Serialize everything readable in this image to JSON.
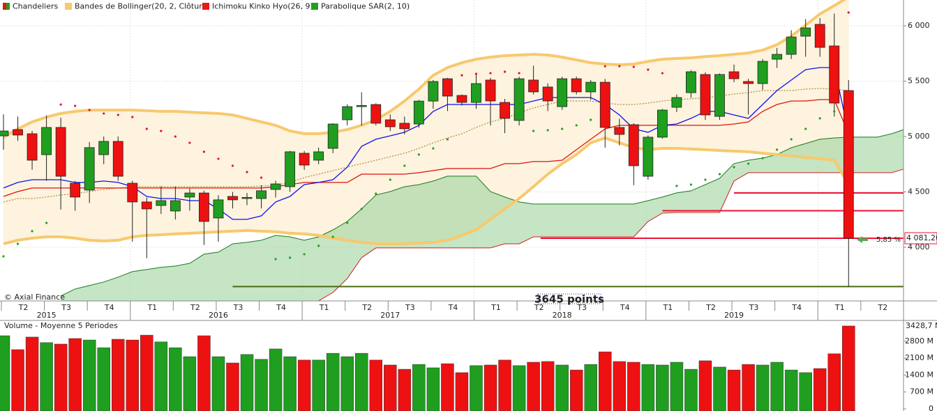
{
  "chart_data": [
    {
      "type": "candlestick",
      "legend": [
        {
          "name": "Chandeliers",
          "color": "#e31b1b"
        },
        {
          "name": "Bandes de Bollinger(20, 2, Clôture)",
          "color": "#f7c96e"
        },
        {
          "name": "Ichimoku Kinko Hyo(26, 9)",
          "color": "#e31b1b"
        },
        {
          "name": "Parabolique SAR(2, 10)",
          "color": "#1f9e1f"
        }
      ],
      "up_color": "#1f9e1f",
      "down_color": "#ee1111",
      "ylim": [
        3515,
        6233
      ],
      "yticks": [
        {
          "value": 4000,
          "label": "4 000"
        },
        {
          "value": 4500,
          "label": "4 500"
        },
        {
          "value": 5000,
          "label": "5 000"
        },
        {
          "value": 5500,
          "label": "5 500"
        },
        {
          "value": 6000,
          "label": "6 000"
        }
      ],
      "grid": true,
      "quarters": [
        "T2",
        "T3",
        "T4",
        "T1",
        "T2",
        "T3",
        "T4",
        "T1",
        "T2",
        "T3",
        "T4",
        "T1",
        "T2",
        "T3",
        "T4",
        "T1",
        "T2",
        "T3",
        "T4",
        "T1",
        "T2"
      ],
      "years": [
        "2015",
        "2016",
        "2017",
        "2018",
        "2019"
      ],
      "open": [
        5006,
        5063,
        5025,
        4836,
        5082,
        4578,
        4516,
        4836,
        4956,
        4578,
        4409,
        4377,
        4327,
        4453,
        4490,
        4264,
        4459,
        4440,
        4440,
        4522,
        4547,
        4849,
        4786,
        4893,
        5151,
        5270,
        5289,
        5151,
        5120,
        5113,
        5320,
        5522,
        5371,
        5308,
        5510,
        5308,
        5145,
        5510,
        5447,
        5270,
        5522,
        5403,
        5490,
        5082,
        5107,
        4641,
        4994,
        5264,
        5396,
        5560,
        5182,
        5585,
        5497,
        5478,
        5698,
        5742,
        5906,
        6013,
        5818,
        5415
      ],
      "high": [
        5200,
        5180,
        5050,
        5190,
        5170,
        4600,
        4950,
        5000,
        5000,
        4600,
        4450,
        4550,
        4550,
        4530,
        4510,
        4470,
        4500,
        4490,
        4560,
        4600,
        4870,
        4870,
        4900,
        5120,
        5290,
        5400,
        5300,
        5200,
        5180,
        5330,
        5510,
        5530,
        5380,
        5560,
        5530,
        5340,
        5540,
        5640,
        5480,
        5540,
        5540,
        5510,
        5520,
        5160,
        5120,
        5010,
        5250,
        5380,
        5600,
        5580,
        5570,
        5650,
        5520,
        5700,
        5800,
        5960,
        6060,
        6070,
        6110,
        5510
      ],
      "low": [
        4880,
        4960,
        4700,
        4600,
        4340,
        4330,
        4400,
        4750,
        4600,
        4050,
        3900,
        4300,
        4250,
        4330,
        4020,
        4050,
        4350,
        4380,
        4350,
        4450,
        4500,
        4700,
        4750,
        4850,
        5100,
        5100,
        5100,
        5050,
        5020,
        5080,
        5250,
        5230,
        5280,
        5250,
        5100,
        5030,
        5100,
        5380,
        5230,
        5240,
        5380,
        5330,
        4900,
        4920,
        4560,
        4610,
        4980,
        5220,
        5350,
        5150,
        5150,
        5490,
        5200,
        5420,
        5620,
        5700,
        5720,
        5720,
        5180,
        3645
      ],
      "close": [
        5050,
        5013,
        4786,
        5082,
        4641,
        4453,
        4900,
        4956,
        4641,
        4409,
        4346,
        4421,
        4421,
        4490,
        4233,
        4428,
        4428,
        4450,
        4510,
        4572,
        4862,
        4742,
        4862,
        5113,
        5270,
        5280,
        5120,
        5088,
        5070,
        5320,
        5497,
        5365,
        5308,
        5478,
        5321,
        5164,
        5522,
        5403,
        5321,
        5522,
        5403,
        5490,
        5082,
        5019,
        4736,
        4994,
        5239,
        5352,
        5585,
        5195,
        5560,
        5522,
        5478,
        5679,
        5742,
        5899,
        5981,
        5805,
        5302,
        4081.2
      ],
      "bollinger": {
        "color": "#f7c96e",
        "mid_color": "#b08a3a",
        "upper": [
          4994,
          5069,
          5132,
          5176,
          5208,
          5227,
          5239,
          5239,
          5239,
          5239,
          5233,
          5227,
          5227,
          5220,
          5214,
          5208,
          5195,
          5164,
          5132,
          5101,
          5050,
          5025,
          5025,
          5038,
          5063,
          5101,
          5151,
          5227,
          5321,
          5428,
          5553,
          5623,
          5667,
          5698,
          5717,
          5730,
          5736,
          5742,
          5736,
          5717,
          5692,
          5667,
          5654,
          5648,
          5654,
          5679,
          5698,
          5705,
          5711,
          5723,
          5730,
          5742,
          5755,
          5780,
          5830,
          5906,
          6006,
          6107,
          6182,
          6260
        ],
        "middle": [
          4409,
          4440,
          4440,
          4453,
          4472,
          4484,
          4503,
          4522,
          4535,
          4547,
          4547,
          4547,
          4547,
          4547,
          4547,
          4547,
          4547,
          4547,
          4554,
          4560,
          4585,
          4629,
          4660,
          4692,
          4723,
          4755,
          4786,
          4818,
          4849,
          4893,
          4943,
          4987,
          5025,
          5082,
          5132,
          5164,
          5214,
          5258,
          5289,
          5321,
          5321,
          5321,
          5302,
          5289,
          5289,
          5302,
          5321,
          5333,
          5340,
          5352,
          5365,
          5384,
          5396,
          5415,
          5415,
          5415,
          5428,
          5434,
          5428,
          5415
        ],
        "lower": [
          4031,
          4063,
          4082,
          4094,
          4094,
          4082,
          4063,
          4057,
          4063,
          4094,
          4107,
          4113,
          4120,
          4126,
          4132,
          4139,
          4145,
          4151,
          4145,
          4139,
          4126,
          4120,
          4107,
          4082,
          4063,
          4044,
          4031,
          4031,
          4031,
          4038,
          4044,
          4063,
          4107,
          4157,
          4252,
          4346,
          4440,
          4547,
          4660,
          4755,
          4837,
          4943,
          4987,
          4943,
          4899,
          4881,
          4893,
          4893,
          4887,
          4881,
          4874,
          4868,
          4862,
          4849,
          4837,
          4824,
          4811,
          4799,
          4786,
          4566
        ]
      },
      "tenkan": {
        "color": "#1010ee",
        "values": [
          4535,
          4585,
          4610,
          4610,
          4610,
          4585,
          4585,
          4598,
          4585,
          4547,
          4459,
          4440,
          4440,
          4421,
          4421,
          4346,
          4252,
          4252,
          4283,
          4409,
          4459,
          4566,
          4585,
          4610,
          4723,
          4912,
          4975,
          5006,
          5038,
          5101,
          5227,
          5289,
          5289,
          5289,
          5289,
          5289,
          5289,
          5321,
          5352,
          5352,
          5352,
          5352,
          5289,
          5195,
          5069,
          5038,
          5101,
          5113,
          5164,
          5227,
          5227,
          5195,
          5164,
          5289,
          5415,
          5510,
          5604,
          5623,
          5623,
          5038
        ]
      },
      "kijun": {
        "color": "#e01010",
        "values": [
          4459,
          4503,
          4535,
          4535,
          4535,
          4535,
          4535,
          4535,
          4535,
          4535,
          4535,
          4535,
          4535,
          4535,
          4535,
          4535,
          4535,
          4535,
          4535,
          4547,
          4566,
          4585,
          4585,
          4585,
          4585,
          4660,
          4660,
          4660,
          4660,
          4673,
          4692,
          4711,
          4711,
          4711,
          4711,
          4755,
          4755,
          4774,
          4774,
          4786,
          4881,
          4975,
          5069,
          5101,
          5101,
          5101,
          5101,
          5101,
          5101,
          5101,
          5101,
          5113,
          5132,
          5227,
          5289,
          5321,
          5321,
          5333,
          5333,
          5025
        ]
      },
      "span_a": {
        "color": "#1a7a1a",
        "values": [
          null,
          null,
          null,
          null,
          3560,
          3623,
          3654,
          3686,
          3730,
          3780,
          3799,
          3818,
          3830,
          3855,
          3937,
          3956,
          4031,
          4044,
          4063,
          4107,
          4094,
          4063,
          4094,
          4157,
          4233,
          4346,
          4472,
          4503,
          4547,
          4566,
          4598,
          4642,
          4642,
          4642,
          4503,
          4453,
          4409,
          4390,
          4390,
          4390,
          4390,
          4390,
          4390,
          4390,
          4390,
          4421,
          4453,
          4491,
          4510,
          4566,
          4623,
          4755,
          4786,
          4805,
          4837,
          4899,
          4937,
          4975,
          4987,
          4994,
          4994,
          4994,
          5025,
          5069
        ]
      },
      "span_b": {
        "color": "#cc2222",
        "values": [
          null,
          null,
          null,
          null,
          3400,
          3400,
          3400,
          3400,
          3400,
          3400,
          3400,
          3400,
          3400,
          3400,
          3400,
          3400,
          3400,
          3400,
          3400,
          3400,
          3400,
          3400,
          3516,
          3591,
          3717,
          3906,
          3994,
          3994,
          3994,
          3994,
          3994,
          3994,
          3994,
          3994,
          3994,
          4031,
          4031,
          4094,
          4094,
          4094,
          4094,
          4094,
          4094,
          4094,
          4094,
          4233,
          4308,
          4314,
          4314,
          4314,
          4314,
          4598,
          4673,
          4673,
          4673,
          4673,
          4673,
          4673,
          4673,
          4673,
          4673,
          4673,
          4673,
          4711
        ]
      },
      "cloud_color": "#9fd49f",
      "sar": {
        "values": [
          3918,
          4031,
          4145,
          4220,
          5289,
          5277,
          5239,
          5208,
          5195,
          5176,
          5069,
          5050,
          5000,
          4943,
          4862,
          4799,
          4736,
          4679,
          4629,
          3893,
          3906,
          3937,
          4013,
          4094,
          4220,
          4346,
          4484,
          4610,
          4736,
          4837,
          4893,
          4975,
          5553,
          5566,
          5572,
          5585,
          5572,
          5050,
          5057,
          5069,
          5101,
          5151,
          5635,
          5635,
          5629,
          5604,
          5572,
          4554,
          4566,
          4610,
          4660,
          4723,
          4755,
          4805,
          4881,
          4975,
          5069,
          5164,
          5227,
          6120
        ],
        "colors": [
          "#22a022",
          "#22a022",
          "#22a022",
          "#22a022",
          "#e8102a",
          "#e8102a",
          "#e8102a",
          "#e8102a",
          "#e8102a",
          "#e8102a",
          "#e8102a",
          "#e8102a",
          "#e8102a",
          "#e8102a",
          "#e8102a",
          "#e8102a",
          "#e8102a",
          "#e8102a",
          "#e8102a",
          "#22a022",
          "#22a022",
          "#22a022",
          "#22a022",
          "#22a022",
          "#22a022",
          "#22a022",
          "#22a022",
          "#22a022",
          "#22a022",
          "#22a022",
          "#22a022",
          "#22a022",
          "#e8102a",
          "#e8102a",
          "#e8102a",
          "#e8102a",
          "#e8102a",
          "#22a022",
          "#22a022",
          "#22a022",
          "#22a022",
          "#22a022",
          "#e8102a",
          "#e8102a",
          "#e8102a",
          "#e8102a",
          "#e8102a",
          "#22a022",
          "#22a022",
          "#22a022",
          "#22a022",
          "#22a022",
          "#22a022",
          "#22a022",
          "#22a022",
          "#22a022",
          "#22a022",
          "#22a022",
          "#22a022",
          "#e8102a"
        ]
      },
      "levels": [
        {
          "value": 3645,
          "start": 16,
          "color": "#4a6a10"
        },
        {
          "value": 4081.2,
          "start": 37.5,
          "color": "#ee1133"
        },
        {
          "value": 4330,
          "start": 46,
          "color": "#ee1133"
        },
        {
          "value": 4490,
          "start": 51,
          "color": "#ee1133"
        }
      ],
      "last_price": {
        "value": 4081.2,
        "label": "4 081,20"
      },
      "change_label": "5,85 %",
      "low_annotation": "3645 points",
      "copyright": "© Axial Finance"
    },
    {
      "type": "bar",
      "title": "Volume - Moyenne 5 Periodes",
      "values": [
        3025,
        2450,
        2970,
        2740,
        2680,
        2910,
        2850,
        2530,
        2880,
        2850,
        3050,
        2770,
        2530,
        2160,
        3025,
        2160,
        1900,
        2250,
        2050,
        2480,
        2160,
        2020,
        2020,
        2300,
        2160,
        2300,
        2020,
        1815,
        1640,
        1840,
        1700,
        1870,
        1500,
        1790,
        1815,
        2020,
        1790,
        1930,
        1960,
        1815,
        1610,
        1840,
        2360,
        1960,
        1930,
        1840,
        1815,
        1930,
        1640,
        1990,
        1730,
        1610,
        1840,
        1815,
        1930,
        1610,
        1500,
        1670,
        2280,
        3428.7
      ],
      "last_label": {
        "value": 3428.7,
        "label": "3428,7 M"
      },
      "ylim": [
        0,
        3600
      ],
      "yticks": [
        0,
        {
          "value": 700,
          "label": "700 M"
        },
        {
          "value": 1400,
          "label": "1400 M"
        },
        {
          "value": 2100,
          "label": "2100 M"
        },
        {
          "value": 2800,
          "label": "2800 M"
        }
      ]
    }
  ]
}
